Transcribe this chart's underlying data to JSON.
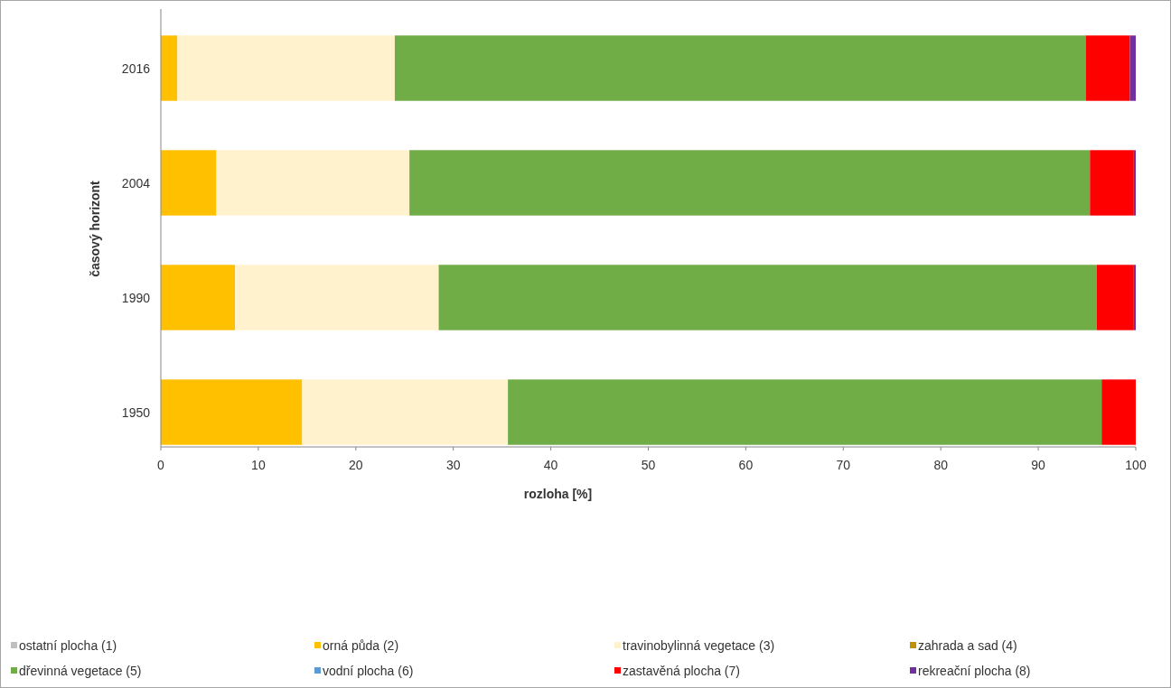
{
  "chart_data": {
    "type": "bar",
    "orientation": "horizontal",
    "stacked": true,
    "xlabel": "rozloha [%]",
    "ylabel": "časový horizont",
    "categories": [
      "2016",
      "2004",
      "1990",
      "1950"
    ],
    "series": [
      {
        "name": "ostatní plocha (1)",
        "color": "#bfbfbf",
        "values": [
          0,
          0,
          0,
          0
        ]
      },
      {
        "name": "orná půda (2)",
        "color": "#ffc000",
        "values": [
          1.7,
          5.7,
          7.6,
          14.5
        ]
      },
      {
        "name": "travinobylinná vegetace (3)",
        "color": "#fff2cc",
        "values": [
          22.3,
          19.8,
          20.9,
          21.1
        ]
      },
      {
        "name": "zahrada  a sad (4)",
        "color": "#bf9000",
        "values": [
          0,
          0,
          0,
          0
        ]
      },
      {
        "name": "dřevinná vegetace (5)",
        "color": "#70ad47",
        "values": [
          70.9,
          69.8,
          67.5,
          60.9
        ]
      },
      {
        "name": "vodní plocha (6)",
        "color": "#5b9bd5",
        "values": [
          0,
          0,
          0,
          0
        ]
      },
      {
        "name": "zastavěná plocha (7)",
        "color": "#ff0000",
        "values": [
          4.5,
          4.5,
          3.8,
          3.5
        ]
      },
      {
        "name": "rekreační plocha (8)",
        "color": "#7030a0",
        "values": [
          0.6,
          0.2,
          0.2,
          0
        ]
      }
    ],
    "xlim": [
      0,
      100
    ],
    "xticks": [
      0,
      10,
      20,
      30,
      40,
      50,
      60,
      70,
      80,
      90,
      100
    ],
    "grid": false,
    "legend": "bottom"
  }
}
